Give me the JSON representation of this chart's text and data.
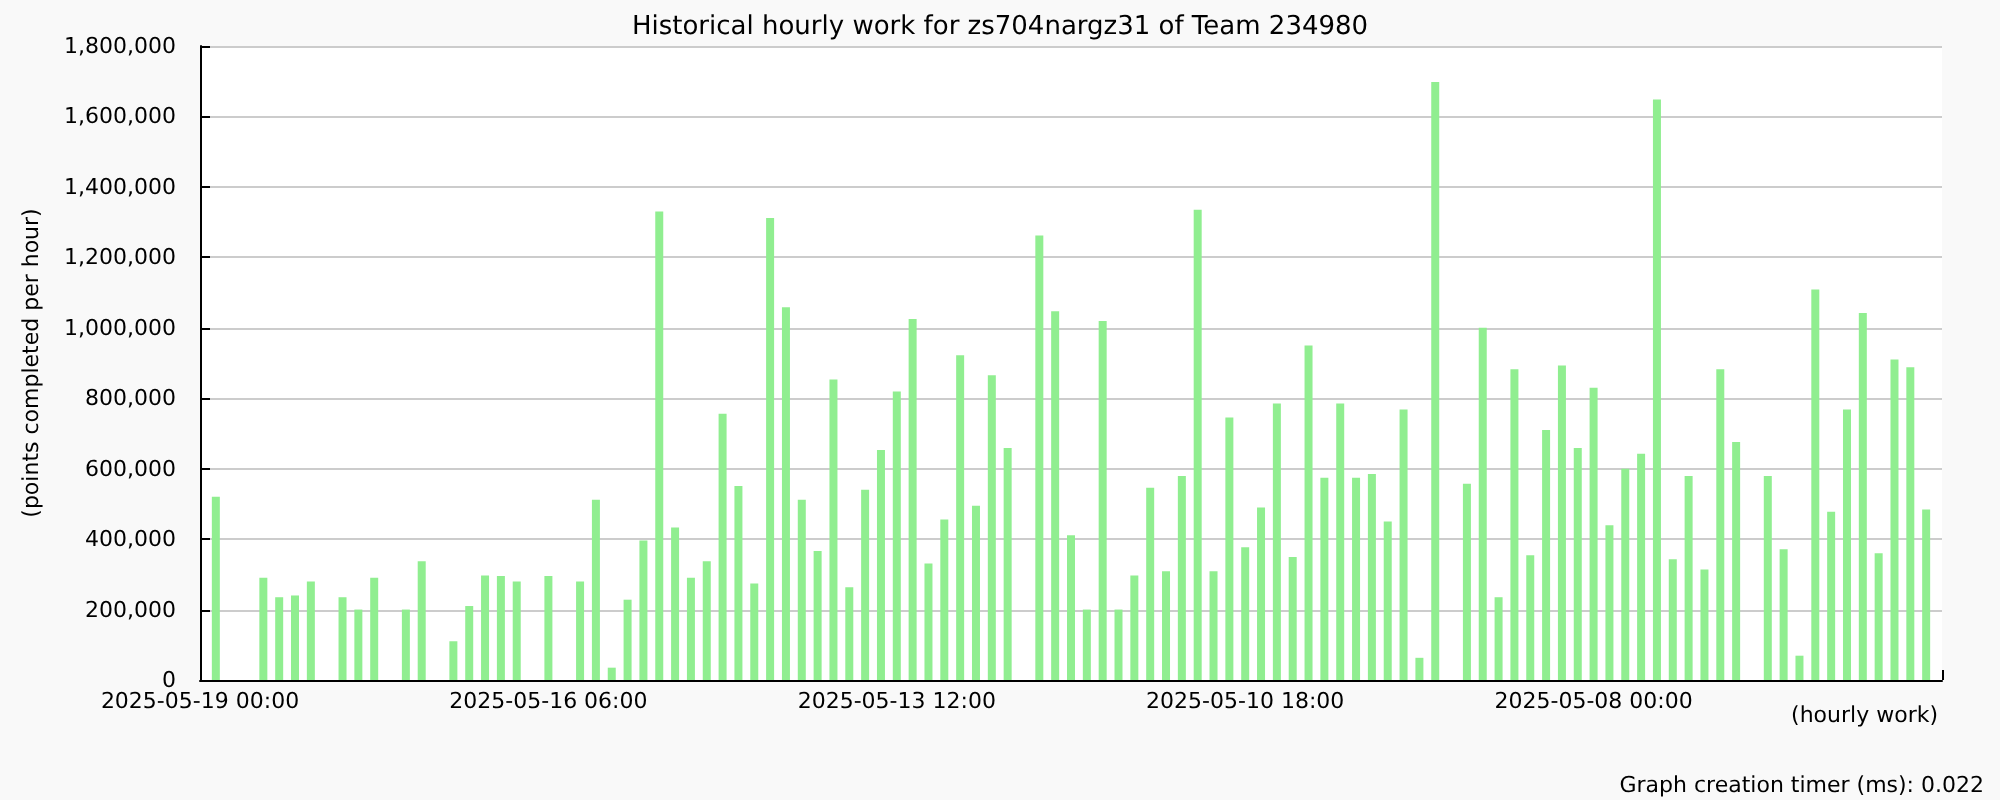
{
  "chart_data": {
    "type": "bar",
    "title": "Historical hourly work for zs704nargz31 of Team 234980",
    "xlabel": "(hourly work)",
    "ylabel": "(points completed per hour)",
    "annotations": [
      "Graph creation timer (ms): 0.022"
    ],
    "x": [
      "2025-05-18T21:00",
      "2025-05-18T12:00",
      "2025-05-18T09:00",
      "2025-05-18T06:00",
      "2025-05-18T03:00",
      "2025-05-17T21:00",
      "2025-05-17T18:00",
      "2025-05-17T15:00",
      "2025-05-17T09:00",
      "2025-05-17T06:00",
      "2025-05-17T00:00",
      "2025-05-16T21:00",
      "2025-05-16T18:00",
      "2025-05-16T15:00",
      "2025-05-16T12:00",
      "2025-05-16T06:00",
      "2025-05-16T00:00",
      "2025-05-15T21:00",
      "2025-05-15T18:00",
      "2025-05-15T15:00",
      "2025-05-15T12:00",
      "2025-05-15T09:00",
      "2025-05-15T06:00",
      "2025-05-15T03:00",
      "2025-05-15T00:00",
      "2025-05-14T21:00",
      "2025-05-14T18:00",
      "2025-05-14T15:00",
      "2025-05-14T12:00",
      "2025-05-14T09:00",
      "2025-05-14T06:00",
      "2025-05-14T03:00",
      "2025-05-14T00:00",
      "2025-05-13T21:00",
      "2025-05-13T18:00",
      "2025-05-13T15:00",
      "2025-05-13T12:00",
      "2025-05-13T09:00",
      "2025-05-13T06:00",
      "2025-05-13T03:00",
      "2025-05-13T00:00",
      "2025-05-12T21:00",
      "2025-05-12T18:00",
      "2025-05-12T15:00",
      "2025-05-12T09:00",
      "2025-05-12T06:00",
      "2025-05-12T03:00",
      "2025-05-12T00:00",
      "2025-05-11T21:00",
      "2025-05-11T18:00",
      "2025-05-11T15:00",
      "2025-05-11T12:00",
      "2025-05-11T09:00",
      "2025-05-11T06:00",
      "2025-05-11T03:00",
      "2025-05-11T00:00",
      "2025-05-10T21:00",
      "2025-05-10T18:00",
      "2025-05-10T15:00",
      "2025-05-10T12:00",
      "2025-05-10T09:00",
      "2025-05-10T06:00",
      "2025-05-10T03:00",
      "2025-05-10T00:00",
      "2025-05-09T21:00",
      "2025-05-09T18:00",
      "2025-05-09T15:00",
      "2025-05-09T12:00",
      "2025-05-09T09:00",
      "2025-05-09T06:00",
      "2025-05-09T00:00",
      "2025-05-08T21:00",
      "2025-05-08T18:00",
      "2025-05-08T15:00",
      "2025-05-08T12:00",
      "2025-05-08T09:00",
      "2025-05-08T06:00",
      "2025-05-08T03:00",
      "2025-05-08T00:00",
      "2025-05-07T21:00",
      "2025-05-07T18:00",
      "2025-05-07T15:00",
      "2025-05-07T12:00",
      "2025-05-07T09:00",
      "2025-05-07T06:00",
      "2025-05-07T03:00",
      "2025-05-07T00:00",
      "2025-05-06T21:00",
      "2025-05-06T15:00",
      "2025-05-06T12:00",
      "2025-05-06T09:00",
      "2025-05-06T06:00",
      "2025-05-06T03:00",
      "2025-05-06T00:00",
      "2025-05-05T21:00",
      "2025-05-05T18:00",
      "2025-05-05T15:00",
      "2025-05-05T12:00",
      "2025-05-05T09:00"
    ],
    "values": [
      520000,
      290000,
      235000,
      240000,
      280000,
      235000,
      200000,
      290000,
      200000,
      337000,
      110000,
      210000,
      297000,
      295000,
      280000,
      295000,
      280000,
      512000,
      35000,
      228000,
      396000,
      1330000,
      433000,
      290000,
      337000,
      756000,
      551000,
      274000,
      1312000,
      1058000,
      512000,
      366000,
      853000,
      263000,
      540000,
      653000,
      819000,
      1025000,
      331000,
      456000,
      922000,
      495000,
      865000,
      659000,
      1262000,
      1047000,
      411000,
      200000,
      1019000,
      200000,
      297000,
      546000,
      309000,
      579000,
      1335000,
      309000,
      745000,
      377000,
      490000,
      785000,
      349000,
      950000,
      574000,
      785000,
      574000,
      585000,
      450000,
      768000,
      63000,
      1698000,
      557000,
      1000000,
      235000,
      882000,
      354000,
      710000,
      893000,
      659000,
      830000,
      439000,
      600000,
      642000,
      1648000,
      343000,
      579000,
      314000,
      882000,
      676000,
      579000,
      371000,
      69000,
      1109000,
      478000,
      768000,
      1042000,
      360000,
      910000,
      888000,
      484000
    ],
    "color": "#90ee90",
    "xlim": [
      "2025-05-19T00:00",
      "2025-05-05T06:00"
    ],
    "xticks": [
      {
        "value": "2025-05-19T00:00",
        "label": "2025-05-19 00:00"
      },
      {
        "value": "2025-05-17T15:00",
        "label": null
      },
      {
        "value": "2025-05-16T06:00",
        "label": "2025-05-16 06:00"
      },
      {
        "value": "2025-05-14T21:00",
        "label": null
      },
      {
        "value": "2025-05-13T12:00",
        "label": "2025-05-13 12:00"
      },
      {
        "value": "2025-05-12T03:00",
        "label": null
      },
      {
        "value": "2025-05-10T18:00",
        "label": "2025-05-10 18:00"
      },
      {
        "value": "2025-05-09T09:00",
        "label": null
      },
      {
        "value": "2025-05-08T00:00",
        "label": "2025-05-08 00:00"
      },
      {
        "value": "2025-05-06T15:00",
        "label": null
      },
      {
        "value": "2025-05-05T06:00",
        "label": null
      }
    ],
    "ylim": [
      0,
      1800000
    ],
    "yticks": [
      {
        "value": 0,
        "label": "0"
      },
      {
        "value": 200000,
        "label": "200,000"
      },
      {
        "value": 400000,
        "label": "400,000"
      },
      {
        "value": 600000,
        "label": "600,000"
      },
      {
        "value": 800000,
        "label": "800,000"
      },
      {
        "value": 1000000,
        "label": "1,000,000"
      },
      {
        "value": 1200000,
        "label": "1,200,000"
      },
      {
        "value": 1400000,
        "label": "1,400,000"
      },
      {
        "value": 1600000,
        "label": "1,600,000"
      },
      {
        "value": 1800000,
        "label": "1,800,000"
      }
    ],
    "grid": "y"
  }
}
